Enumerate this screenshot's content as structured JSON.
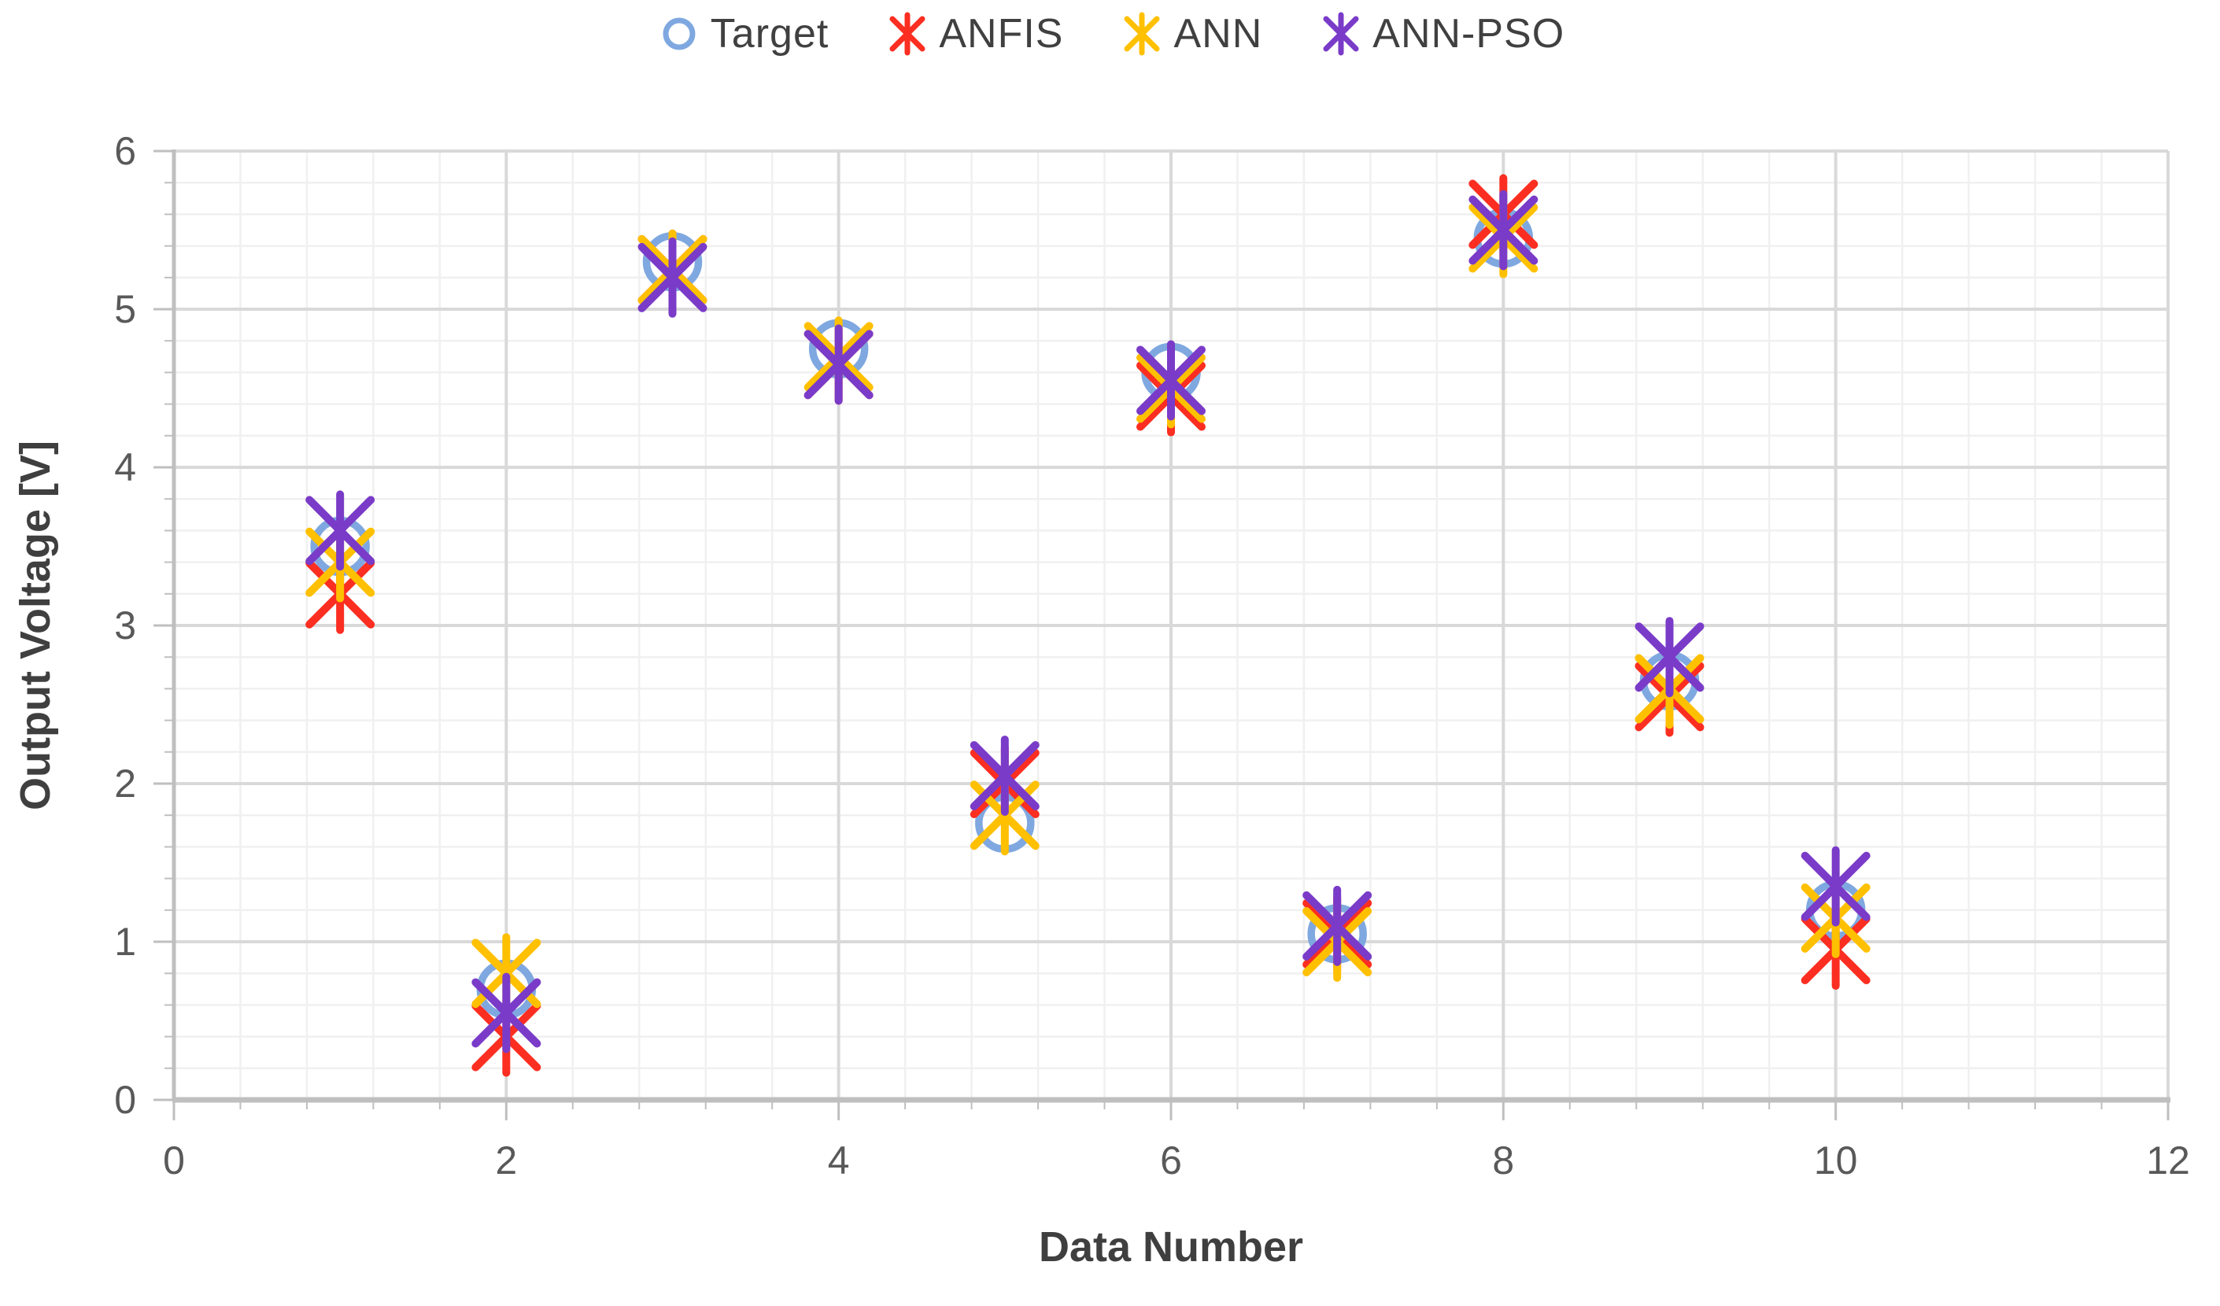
{
  "figure": {
    "background_color": "#ffffff",
    "axis_line_color": "#bfbfbf",
    "major_grid_color": "#d9d9d9",
    "minor_grid_color": "#f0f0f0",
    "tick_label_color": "#595959",
    "axis_title_color": "#3f3f3f",
    "legend_text_color": "#404040"
  },
  "legend": {
    "items": [
      {
        "label": "Target",
        "marker": "circle",
        "color": "#7fa8e0"
      },
      {
        "label": "ANFIS",
        "marker": "star6",
        "color": "#fb2e21"
      },
      {
        "label": "ANN",
        "marker": "star6",
        "color": "#ffc000"
      },
      {
        "label": "ANN-PSO",
        "marker": "star6",
        "color": "#7a3bc8"
      }
    ]
  },
  "chart_data": {
    "type": "scatter",
    "title": "",
    "xlabel": "Data Number",
    "ylabel": "Output Voltage [V]",
    "xlim": [
      0,
      12
    ],
    "ylim": [
      0,
      6
    ],
    "x_major_ticks": [
      0,
      2,
      4,
      6,
      8,
      10,
      12
    ],
    "y_major_ticks": [
      0,
      1,
      2,
      3,
      4,
      5,
      6
    ],
    "x_minor_step": 0.4,
    "y_minor_step": 0.2,
    "grid": "major+minor",
    "legend_position": "top-center",
    "x": [
      1,
      2,
      3,
      4,
      5,
      6,
      7,
      8,
      9,
      10
    ],
    "series": [
      {
        "name": "Target",
        "marker": "circle",
        "color": "#7fa8e0",
        "values": [
          3.5,
          0.7,
          5.3,
          4.75,
          1.75,
          4.6,
          1.05,
          5.45,
          2.65,
          1.2
        ]
      },
      {
        "name": "ANFIS",
        "marker": "star6",
        "color": "#fb2e21",
        "values": [
          3.2,
          0.4,
          5.25,
          4.65,
          2.0,
          4.45,
          1.05,
          5.6,
          2.55,
          0.95
        ]
      },
      {
        "name": "ANN",
        "marker": "star6",
        "color": "#ffc000",
        "values": [
          3.4,
          0.8,
          5.25,
          4.7,
          1.8,
          4.5,
          1.0,
          5.45,
          2.6,
          1.15
        ]
      },
      {
        "name": "ANN-PSO",
        "marker": "star6",
        "color": "#7a3bc8",
        "values": [
          3.6,
          0.55,
          5.2,
          4.65,
          2.05,
          4.55,
          1.1,
          5.5,
          2.8,
          1.35
        ]
      }
    ]
  }
}
